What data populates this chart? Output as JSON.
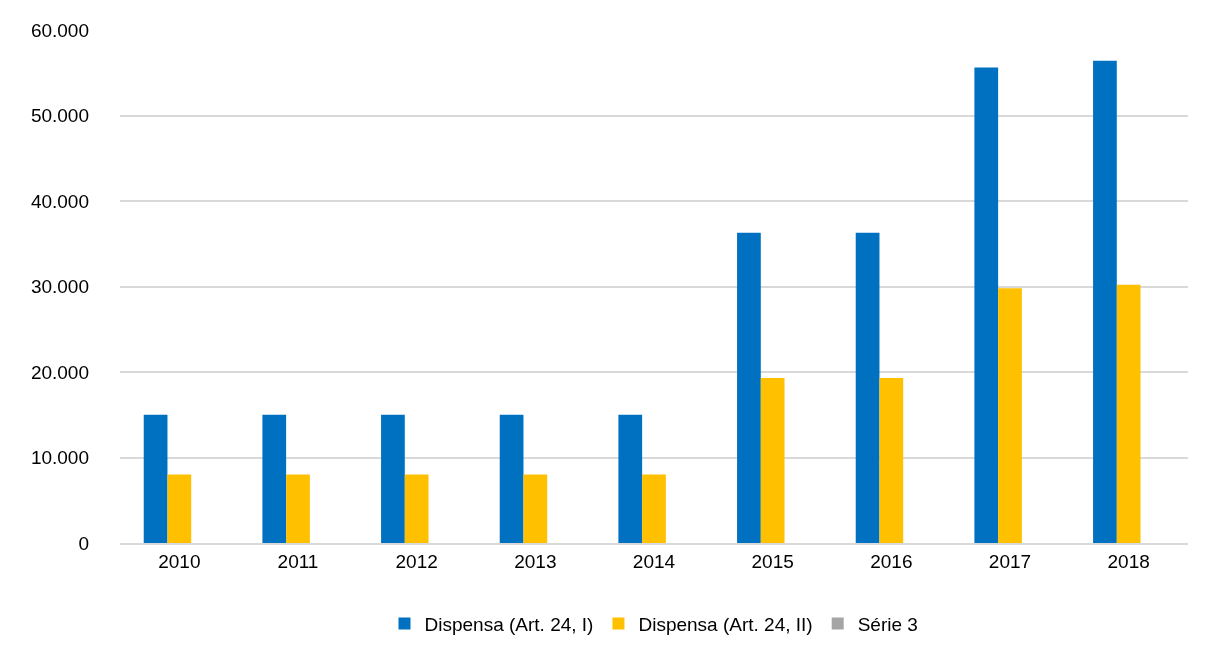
{
  "chart_data": {
    "type": "bar",
    "categories": [
      "2010",
      "2011",
      "2012",
      "2013",
      "2014",
      "2015",
      "2016",
      "2017",
      "2018"
    ],
    "series": [
      {
        "name": "Dispensa (Art. 24, I)",
        "color": "#0070c0",
        "values": [
          15000,
          15000,
          15000,
          15000,
          15000,
          36300,
          36300,
          55600,
          56400
        ]
      },
      {
        "name": "Dispensa (Art. 24, II)",
        "color": "#ffc000",
        "values": [
          8000,
          8000,
          8000,
          8000,
          8000,
          19300,
          19300,
          29800,
          30200
        ]
      },
      {
        "name": "Série 3",
        "color": "#a5a5a5",
        "values": [
          null,
          null,
          null,
          null,
          null,
          null,
          null,
          null,
          null
        ]
      }
    ],
    "ylim": [
      0,
      60000
    ],
    "yticks": [
      {
        "value": 0,
        "label": "0"
      },
      {
        "value": 10000,
        "label": "10.000"
      },
      {
        "value": 20000,
        "label": "20.000"
      },
      {
        "value": 30000,
        "label": "30.000"
      },
      {
        "value": 40000,
        "label": "40.000"
      },
      {
        "value": 50000,
        "label": "50.000"
      },
      {
        "value": 60000,
        "label": "60.000"
      }
    ],
    "grid": "y",
    "legend": "bottom"
  }
}
